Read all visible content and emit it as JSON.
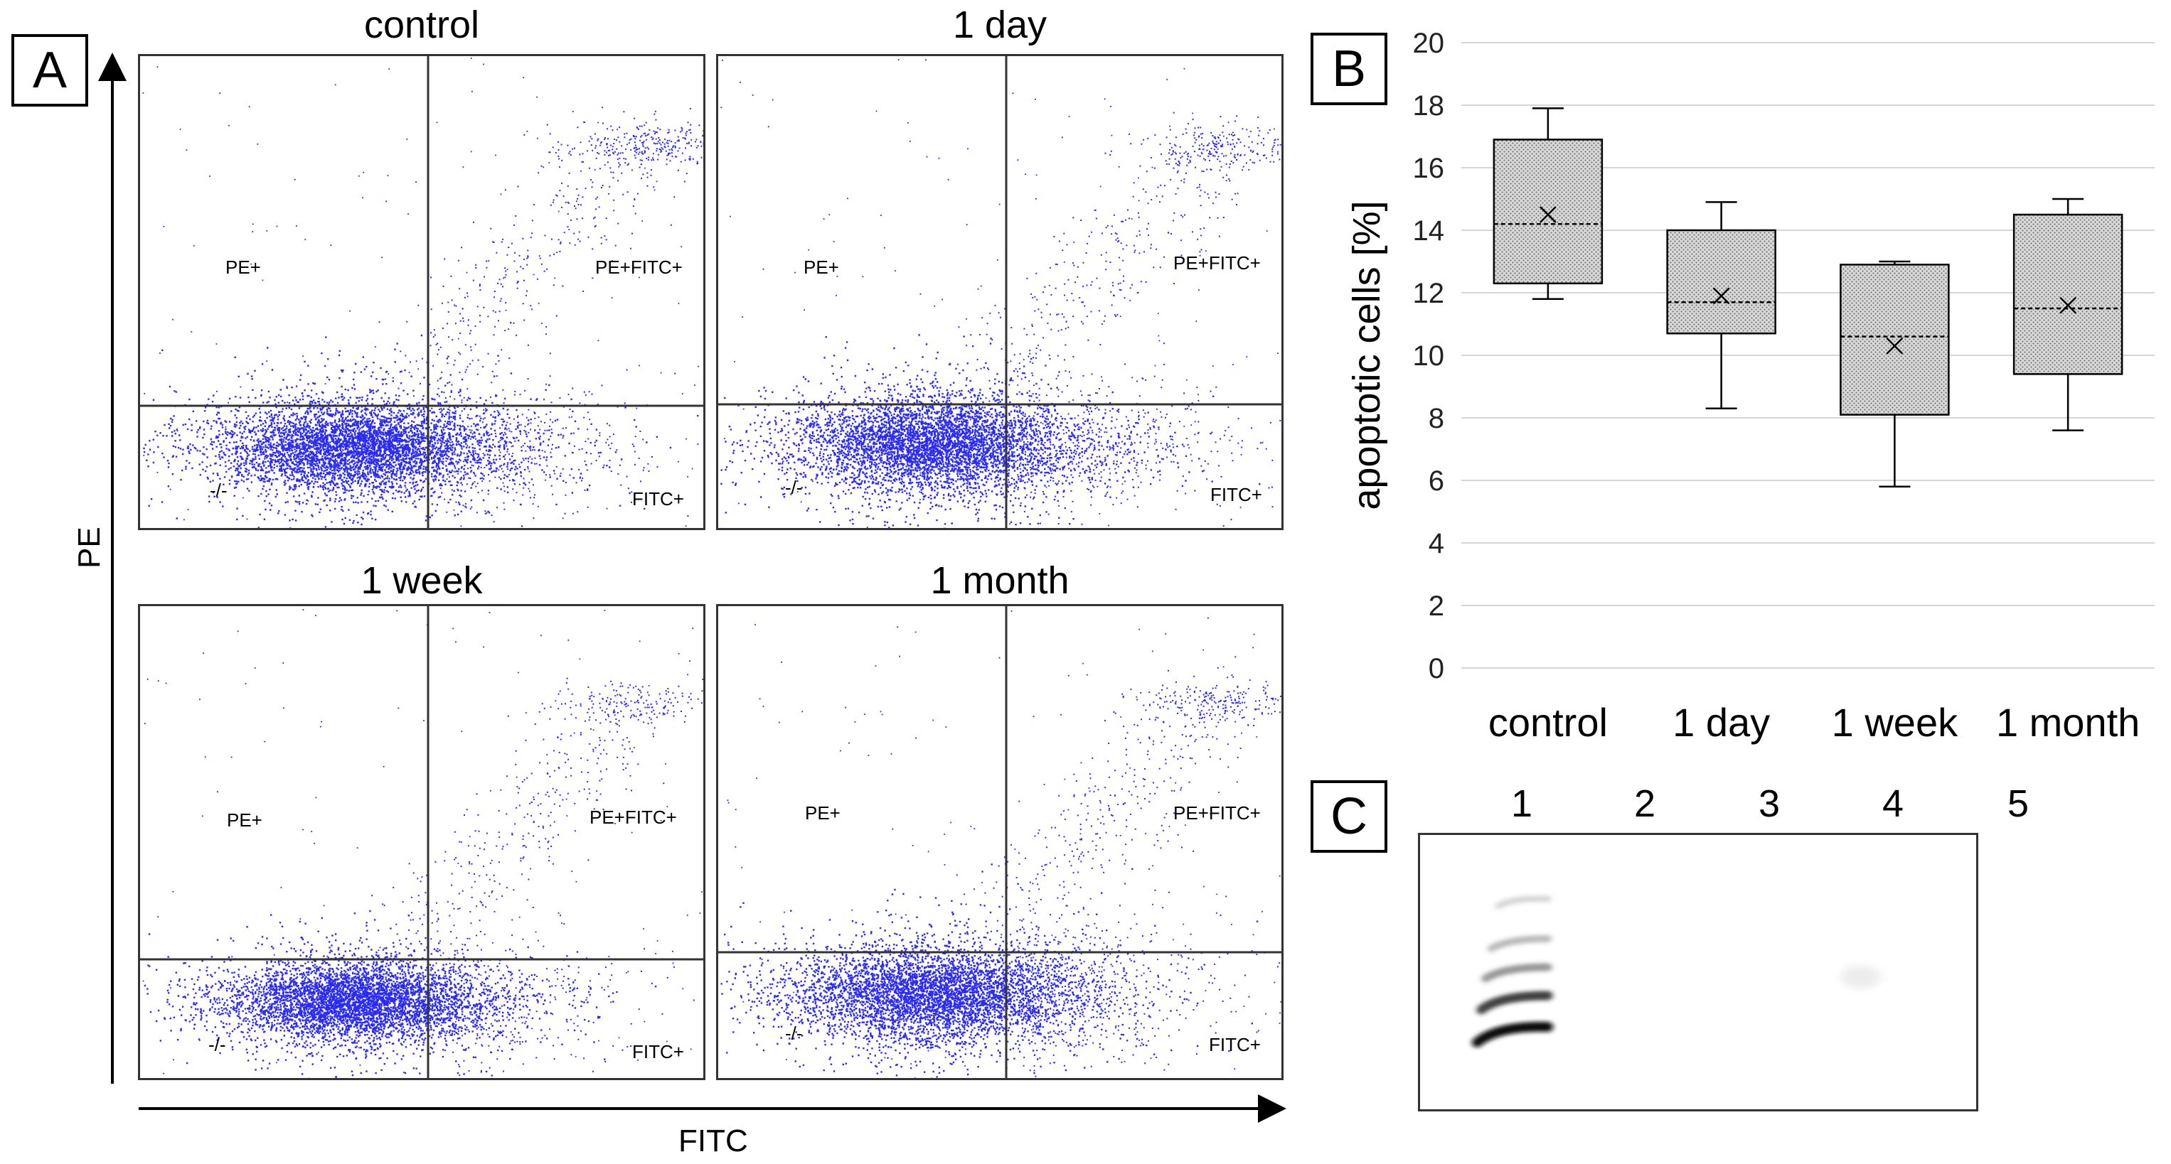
{
  "figure": {
    "panel_a_label": "A",
    "panel_b_label": "B",
    "panel_c_label": "C",
    "dot_color": "#2a2af5"
  },
  "flow": {
    "x_axis_label": "FITC",
    "y_axis_label": "PE",
    "quadrants": {
      "upper_left": "PE+",
      "upper_right": "PE+FITC+",
      "lower_left": "-/-",
      "lower_right": "FITC+"
    },
    "plots": [
      {
        "title": "control"
      },
      {
        "title": "1 day"
      },
      {
        "title": "1 week"
      },
      {
        "title": "1 month"
      }
    ]
  },
  "chart_data": {
    "type": "box",
    "title": "",
    "xlabel": "",
    "ylabel": "apoptotic cells [%]",
    "ylim": [
      0,
      20
    ],
    "yticks": [
      0,
      2,
      4,
      6,
      8,
      10,
      12,
      14,
      16,
      18,
      20
    ],
    "grid": true,
    "categories": [
      "control",
      "1 day",
      "1 week",
      "1 month"
    ],
    "boxes": [
      {
        "name": "control",
        "min": 11.8,
        "q1": 12.3,
        "median": 14.2,
        "q3": 16.9,
        "max": 17.9,
        "mean": 14.5
      },
      {
        "name": "1 day",
        "min": 8.3,
        "q1": 10.7,
        "median": 11.7,
        "q3": 14.0,
        "max": 14.9,
        "mean": 11.9
      },
      {
        "name": "1 week",
        "min": 5.8,
        "q1": 8.1,
        "median": 10.6,
        "q3": 12.9,
        "max": 13.0,
        "mean": 10.3
      },
      {
        "name": "1 month",
        "min": 7.6,
        "q1": 9.4,
        "median": 11.5,
        "q3": 14.5,
        "max": 15.0,
        "mean": 11.6
      }
    ]
  },
  "gel": {
    "lanes": [
      "1",
      "2",
      "3",
      "4",
      "5"
    ],
    "ladder_lane": "1"
  }
}
